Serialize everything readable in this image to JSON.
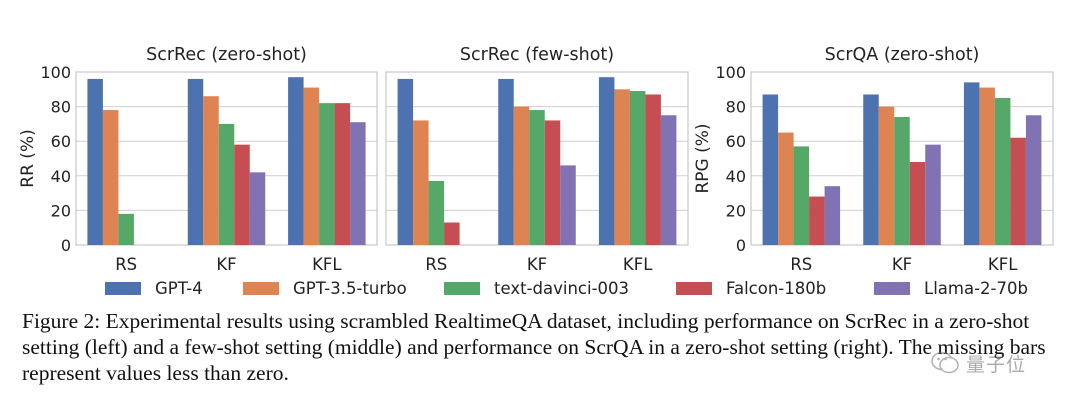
{
  "figure": {
    "caption": "Figure 2: Experimental results using scrambled RealtimeQA dataset, including performance on ScrRec in a zero-shot setting (left) and a few-shot setting (middle) and performance on ScrQA in a zero-shot setting (right). The missing bars represent values less than zero.",
    "watermark": "量子位"
  },
  "colors": {
    "GPT-4": "#4c72b0",
    "GPT-3.5-turbo": "#dd8452",
    "text-davinci-003": "#55a868",
    "Falcon-180b": "#c44e52",
    "Llama-2-70b": "#8172b3"
  },
  "chart_data": [
    {
      "type": "bar",
      "title": "ScrRec (zero-shot)",
      "xlabel": "",
      "ylabel": "RR (%)",
      "ylim": [
        0,
        100
      ],
      "yticks": [
        0,
        20,
        40,
        60,
        80,
        100
      ],
      "categories": [
        "RS",
        "KF",
        "KFL"
      ],
      "series": [
        {
          "name": "GPT-4",
          "values": [
            96,
            96,
            97
          ]
        },
        {
          "name": "GPT-3.5-turbo",
          "values": [
            78,
            86,
            91
          ]
        },
        {
          "name": "text-davinci-003",
          "values": [
            18,
            70,
            82
          ]
        },
        {
          "name": "Falcon-180b",
          "values": [
            null,
            58,
            82
          ]
        },
        {
          "name": "Llama-2-70b",
          "values": [
            null,
            42,
            71
          ]
        }
      ]
    },
    {
      "type": "bar",
      "title": "ScrRec (few-shot)",
      "xlabel": "",
      "ylabel": "",
      "ylim": [
        0,
        100
      ],
      "yticks": [
        0,
        20,
        40,
        60,
        80,
        100
      ],
      "categories": [
        "RS",
        "KF",
        "KFL"
      ],
      "series": [
        {
          "name": "GPT-4",
          "values": [
            96,
            96,
            97
          ]
        },
        {
          "name": "GPT-3.5-turbo",
          "values": [
            72,
            80,
            90
          ]
        },
        {
          "name": "text-davinci-003",
          "values": [
            37,
            78,
            89
          ]
        },
        {
          "name": "Falcon-180b",
          "values": [
            13,
            72,
            87
          ]
        },
        {
          "name": "Llama-2-70b",
          "values": [
            null,
            46,
            75
          ]
        }
      ]
    },
    {
      "type": "bar",
      "title": "ScrQA (zero-shot)",
      "xlabel": "",
      "ylabel": "RPG (%)",
      "ylim": [
        0,
        100
      ],
      "yticks": [
        0,
        20,
        40,
        60,
        80,
        100
      ],
      "categories": [
        "RS",
        "KF",
        "KFL"
      ],
      "series": [
        {
          "name": "GPT-4",
          "values": [
            87,
            87,
            94
          ]
        },
        {
          "name": "GPT-3.5-turbo",
          "values": [
            65,
            80,
            91
          ]
        },
        {
          "name": "text-davinci-003",
          "values": [
            57,
            74,
            85
          ]
        },
        {
          "name": "Falcon-180b",
          "values": [
            28,
            48,
            62
          ]
        },
        {
          "name": "Llama-2-70b",
          "values": [
            34,
            58,
            75
          ]
        }
      ]
    }
  ],
  "legend": {
    "position": "bottom",
    "entries": [
      "GPT-4",
      "GPT-3.5-turbo",
      "text-davinci-003",
      "Falcon-180b",
      "Llama-2-70b"
    ]
  }
}
